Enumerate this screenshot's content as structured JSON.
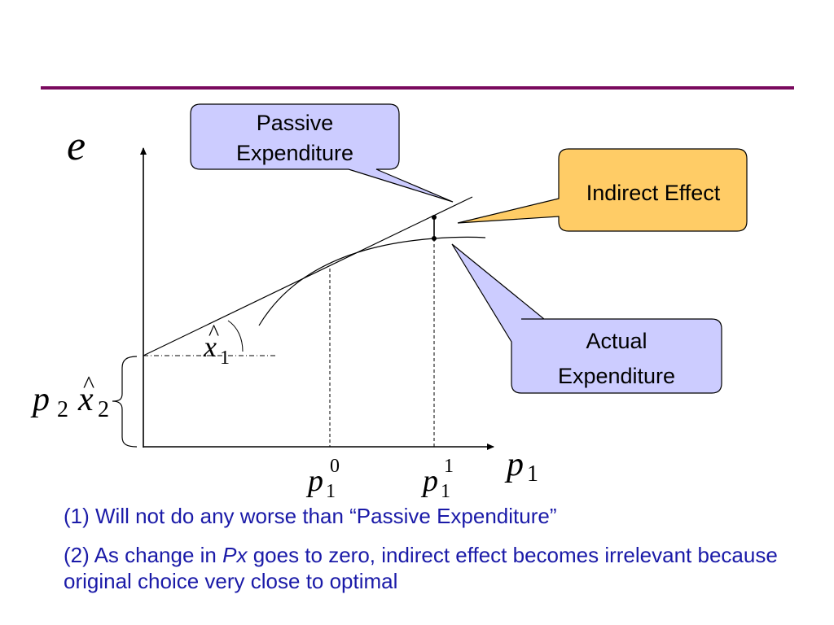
{
  "colors": {
    "rule": "#7a0a5e",
    "callout_blue_fill": "#ccccff",
    "callout_orange_fill": "#ffcc66",
    "note_text": "#1a1aa8",
    "lines": "#000000"
  },
  "axes": {
    "y_label": "e",
    "x_label_base": "p",
    "x_label_sub": "1",
    "intercept_label_p": "p",
    "intercept_label_p_sub": "2",
    "intercept_label_x": "x",
    "intercept_label_x_hat": "^",
    "intercept_label_x_sub": "2",
    "tick_p0_base": "p",
    "tick_p0_sub": "1",
    "tick_p0_sup": "0",
    "tick_p1_base": "p",
    "tick_p1_sub": "1",
    "tick_p1_sup": "1"
  },
  "slope_label": {
    "base": "x",
    "hat": "^",
    "sub": "1"
  },
  "callouts": {
    "passive_line1": "Passive",
    "passive_line2": "Expenditure",
    "indirect": "Indirect Effect",
    "actual_line1": "Actual",
    "actual_line2": "Expenditure"
  },
  "notes": {
    "note1": "(1) Will not do any worse than “Passive Expenditure”",
    "note2_part1": "(2) As change in ",
    "note2_italic": "Px",
    "note2_part2": " goes to zero, indirect effect becomes irrelevant because original choice very close to optimal"
  }
}
